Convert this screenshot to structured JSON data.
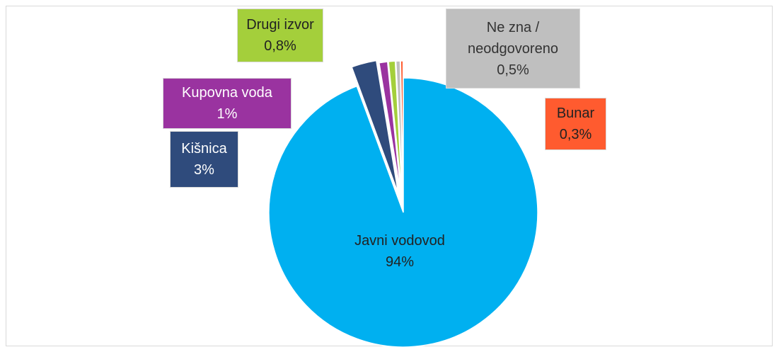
{
  "chart_data": {
    "type": "pie",
    "categories": [
      "Javni vodovod",
      "Kišnica",
      "Kupovna voda",
      "Drugi izvor",
      "Ne zna / neodgovoreno",
      "Bunar"
    ],
    "values": [
      94,
      3,
      1,
      0.8,
      0.5,
      0.3
    ],
    "value_labels": [
      "94%",
      "3%",
      "1%",
      "0,8%",
      "0,5%",
      "0,3%"
    ],
    "colors": [
      "#00b0f0",
      "#2f4b7c",
      "#9a33a0",
      "#a4cf3b",
      "#bfbfbf",
      "#ff5b2f"
    ]
  }
}
